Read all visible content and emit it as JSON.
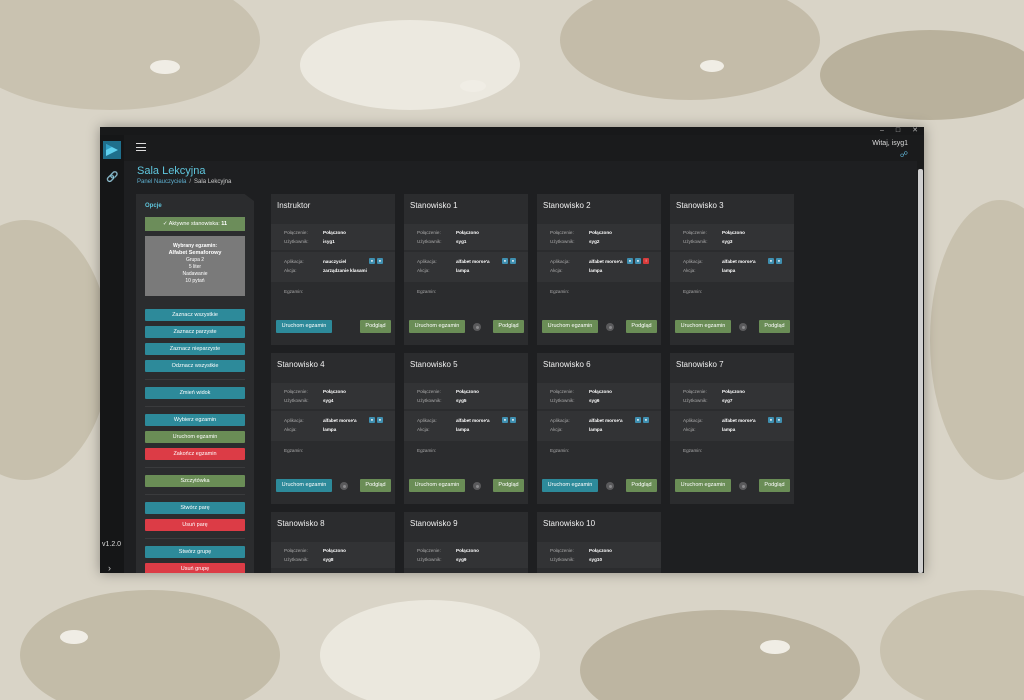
{
  "window": {
    "greeting": "Witaj, isyg1",
    "version": "v1.2.0",
    "page_title": "Sala Lekcyjna",
    "breadcrumb": [
      "Panel Nauczyciela",
      "Sala Lekcyjna"
    ]
  },
  "sidebar": {
    "title": "Opcje",
    "active_label": "Aktywne stanowiska:",
    "active_count": "11",
    "exam": {
      "heading": "Wybrany egzamin:",
      "name": "Alfabet Semaforowy",
      "lines": [
        "Grupa 2",
        "5 liter",
        "Nadawanie",
        "10 pytań"
      ]
    },
    "buttons": {
      "select_all": "Zaznacz wszystkie",
      "select_even": "Zaznacz parzyste",
      "select_odd": "Zaznacz nieparzyste",
      "deselect_all": "Odznacz wszystkie",
      "change_view": "Zmień widok",
      "choose_exam": "Wybierz egzamin",
      "start_exam": "Uruchom egzamin",
      "end_exam": "Zakończ egzamin",
      "quick": "Szczytówka",
      "create_pair": "Stwórz parę",
      "remove_pair": "Usuń parę",
      "create_group": "Stwórz grupę",
      "remove_group": "Usuń grupę"
    }
  },
  "labels": {
    "connection": "Połączenie:",
    "user": "Użytkownik:",
    "app": "Aplikacja:",
    "action": "Akcja:",
    "exam": "Egzamin:",
    "run_exam": "Uruchom egzamin",
    "preview": "Podgląd"
  },
  "cards": [
    {
      "title": "Instruktor",
      "connection": "Połączono",
      "user": "isyg1",
      "app": "nauczyciel",
      "action": "zarządzanie klasami",
      "badges": 2,
      "red_badge": false
    },
    {
      "title": "Stanowisko 1",
      "connection": "Połączono",
      "user": "syg1",
      "app": "alfabet morse'a",
      "action": "lampa",
      "badges": 2,
      "red_badge": false
    },
    {
      "title": "Stanowisko 2",
      "connection": "Połączono",
      "user": "syg2",
      "app": "alfabet morse'a",
      "action": "lampa",
      "badges": 2,
      "red_badge": true
    },
    {
      "title": "Stanowisko 3",
      "connection": "Połączono",
      "user": "syg3",
      "app": "alfabet morse'a",
      "action": "lampa",
      "badges": 2,
      "red_badge": false
    },
    {
      "title": "Stanowisko 4",
      "connection": "Połączono",
      "user": "syg4",
      "app": "alfabet morse'a",
      "action": "lampa",
      "badges": 2,
      "red_badge": false
    },
    {
      "title": "Stanowisko 5",
      "connection": "Połączono",
      "user": "syg5",
      "app": "alfabet morse'a",
      "action": "lampa",
      "badges": 2,
      "red_badge": false
    },
    {
      "title": "Stanowisko 6",
      "connection": "Połączono",
      "user": "syg6",
      "app": "alfabet morse'a",
      "action": "lampa",
      "badges": 2,
      "red_badge": false
    },
    {
      "title": "Stanowisko 7",
      "connection": "Połączono",
      "user": "syg7",
      "app": "alfabet morse'a",
      "action": "lampa",
      "badges": 2,
      "red_badge": false
    },
    {
      "title": "Stanowisko 8",
      "connection": "Połączono",
      "user": "syg8"
    },
    {
      "title": "Stanowisko 9",
      "connection": "Połączono",
      "user": "syg9"
    },
    {
      "title": "Stanowisko 10",
      "connection": "Połączono",
      "user": "syg10"
    }
  ],
  "colors": {
    "accent": "#5fc6dd",
    "teal_button": "#2d8a9a",
    "green_button": "#6a8d56",
    "red_button": "#dc3c46"
  }
}
